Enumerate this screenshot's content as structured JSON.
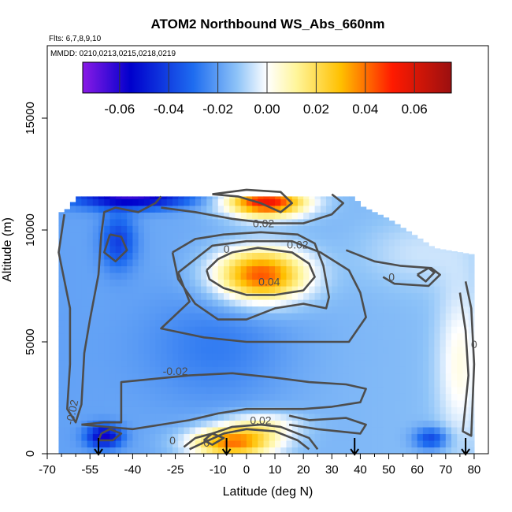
{
  "chart_data": {
    "type": "heatmap",
    "title": "ATOM2 Northbound WS_Abs_660nm",
    "flights_text": "Flts: 6,7,8,9,10",
    "dates_text": "MMDD: 0210,0213,0215,0218,0219",
    "xlabel": "Latitude (deg N)",
    "ylabel": "Altitude (m)",
    "xlim": [
      -70,
      85
    ],
    "ylim": [
      0,
      18000
    ],
    "x_tick_labels": [
      "-70",
      "-55",
      "-40",
      "-25",
      "-10",
      "0",
      "10",
      "20",
      "30",
      "40",
      "50",
      "60",
      "70",
      "80"
    ],
    "x_tick_values": [
      -70,
      -55,
      -40,
      -25,
      -10,
      0,
      10,
      20,
      30,
      40,
      50,
      60,
      70,
      80
    ],
    "minor_x_ticks": [
      -65,
      -60,
      -50,
      -45,
      -35,
      -30,
      -20,
      -15,
      -5,
      5,
      15,
      25,
      35,
      45,
      55,
      65,
      75
    ],
    "y_ticks": [
      0,
      5000,
      10000,
      15000
    ],
    "colorbar": {
      "range": [
        -0.075,
        0.075
      ],
      "tick_values": [
        -0.06,
        -0.04,
        -0.02,
        0,
        0.02,
        0.04,
        0.06
      ],
      "tick_labels": [
        "-0.06",
        "-0.04",
        "-0.02",
        "0.00",
        "0.02",
        "0.04",
        "0.06"
      ],
      "colors": [
        "#8a1ae6",
        "#0000cc",
        "#1e6cf0",
        "#8fc4f8",
        "#ffffff",
        "#fff59a",
        "#ffc000",
        "#ff1a00",
        "#9b1010"
      ]
    },
    "flight_markers_lat": [
      -52,
      -7,
      38,
      77
    ],
    "grid": false,
    "legend": "colorbar top",
    "contour_labels": [
      {
        "text": "0.02",
        "lat": 6,
        "alt": 10300
      },
      {
        "text": "0",
        "lat": -7,
        "alt": 9150
      },
      {
        "text": "0.02",
        "lat": 18,
        "alt": 9350
      },
      {
        "text": "0.04",
        "lat": 8,
        "alt": 7700
      },
      {
        "text": "0",
        "lat": 51,
        "alt": 7900
      },
      {
        "text": "0",
        "lat": 80,
        "alt": 4900
      },
      {
        "text": "-0.02",
        "lat": -25,
        "alt": 3700
      },
      {
        "text": "-0.02",
        "lat": -60,
        "alt": 2000
      },
      {
        "text": "0.02",
        "lat": 5,
        "alt": 1500
      },
      {
        "text": "0",
        "lat": -26,
        "alt": 600
      },
      {
        "text": "0",
        "lat": -14,
        "alt": 500
      }
    ]
  }
}
